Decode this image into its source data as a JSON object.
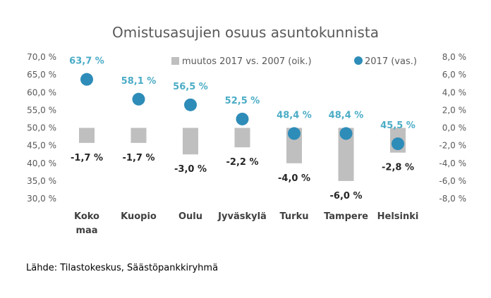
{
  "chart_data": {
    "type": "bar",
    "title": "Omistusasujien osuus asuntokunnista",
    "categories": [
      [
        "Koko",
        "maa"
      ],
      [
        "Kuopio"
      ],
      [
        "Oulu"
      ],
      [
        "Jyväskylä"
      ],
      [
        "Turku"
      ],
      [
        "Tampere"
      ],
      [
        "Helsinki"
      ]
    ],
    "series": [
      {
        "name": "muutos 2017 vs. 2007 (oik.)",
        "kind": "bar",
        "axis": "right",
        "values": [
          -1.7,
          -1.7,
          -3.0,
          -2.2,
          -4.0,
          -6.0,
          -2.8
        ],
        "labels": [
          "-1,7 %",
          "-1,7 %",
          "-3,0 %",
          "-2,2 %",
          "-4,0 %",
          "-6,0 %",
          "-2,8 %"
        ],
        "color": "#bfbfbf"
      },
      {
        "name": "2017 (vas.)",
        "kind": "scatter",
        "axis": "left",
        "values": [
          63.7,
          58.1,
          56.5,
          52.5,
          48.4,
          48.4,
          45.5
        ],
        "labels": [
          "63,7 %",
          "58,1 %",
          "56,5 %",
          "52,5 %",
          "48,4 %",
          "48,4 %",
          "45,5 %"
        ],
        "color": "#2e8cb8"
      }
    ],
    "left_axis": {
      "ylim": [
        30,
        70
      ],
      "ticks": [
        70,
        65,
        60,
        55,
        50,
        45,
        40,
        35,
        30
      ],
      "tick_labels": [
        "70,0 %",
        "65,0 %",
        "60,0 %",
        "55,0 %",
        "50,0 %",
        "45,0 %",
        "40,0 %",
        "35,0 %",
        "30,0 %"
      ]
    },
    "right_axis": {
      "ylim": [
        -8,
        8
      ],
      "ticks": [
        8,
        6,
        4,
        2,
        0,
        -2,
        -4,
        -6,
        -8
      ],
      "tick_labels": [
        "8,0 %",
        "6,0 %",
        "4,0 %",
        "2,0 %",
        "0,0 %",
        "-2,0 %",
        "-4,0 %",
        "-6,0 %",
        "-8,0 %"
      ]
    },
    "legend_position": "top-right",
    "grid": false
  },
  "source": "Lähde: Tilastokeskus, Säästöpankkiryhmä"
}
